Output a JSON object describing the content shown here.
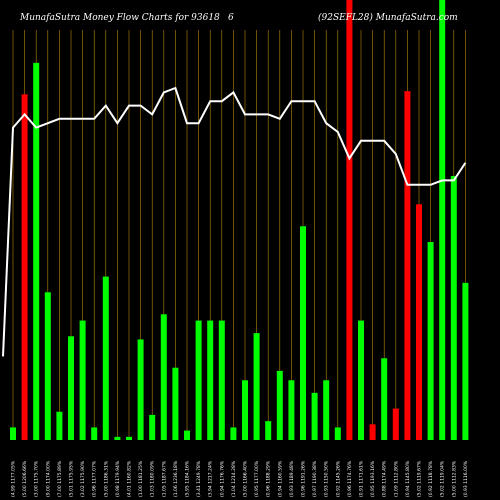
{
  "header": {
    "left": "MunafaSutra  Money Flow  Charts for 93618",
    "middle": "6",
    "right": "(92SEFL28) MunafaSutra.com"
  },
  "chart_data": {
    "type": "bar",
    "bar_colors": {
      "up": "#00ff00",
      "down": "#ff0000",
      "grid": "#b8860b",
      "line": "#ffffff"
    },
    "bars": [
      {
        "label": "(4.99 1177.05%",
        "value": 4,
        "color": "up"
      },
      {
        "label": "(5.00 1206.66%",
        "value": 110,
        "color": "down"
      },
      {
        "label": "(3.00 1175.70%",
        "value": 120,
        "color": "up"
      },
      {
        "label": "(9.00 1174.00%",
        "value": 47,
        "color": "up"
      },
      {
        "label": "(7.00 1175.89%",
        "value": 9,
        "color": "up"
      },
      {
        "label": "(5.01 1175.95%",
        "value": 33,
        "color": "up"
      },
      {
        "label": "(3.02 1175.90%",
        "value": 38,
        "color": "up"
      },
      {
        "label": "(0.96 1177.07%",
        "value": 4,
        "color": "up"
      },
      {
        "label": "(5.00 1186.31%",
        "value": 52,
        "color": "up"
      },
      {
        "label": "(0.98 1179.94%",
        "value": 1,
        "color": "up"
      },
      {
        "label": "(4.01 1160.82%",
        "value": 1,
        "color": "up"
      },
      {
        "label": "(1.00 1181.25%",
        "value": 32,
        "color": "up"
      },
      {
        "label": "(1.03 1180.09%",
        "value": 8,
        "color": "up"
      },
      {
        "label": "(1.05 1187.67%",
        "value": 40,
        "color": "up"
      },
      {
        "label": "(1.06 1236.18%",
        "value": 23,
        "color": "up"
      },
      {
        "label": "(5.95 1184.16%",
        "value": 3,
        "color": "up"
      },
      {
        "label": "(3.41 1249.78%",
        "value": 38,
        "color": "up"
      },
      {
        "label": "(3.94 1217.24%",
        "value": 38,
        "color": "up"
      },
      {
        "label": "(0.94 1176.76%",
        "value": 38,
        "color": "up"
      },
      {
        "label": "(1.04 1214.28%",
        "value": 4,
        "color": "up"
      },
      {
        "label": "(5.00 1166.40%",
        "value": 19,
        "color": "up"
      },
      {
        "label": "(0.95 1177.00%",
        "value": 34,
        "color": "up"
      },
      {
        "label": "(0.96 1188.29%",
        "value": 6,
        "color": "up"
      },
      {
        "label": "(0.94 1160.59%",
        "value": 22,
        "color": "up"
      },
      {
        "label": "(0.93 1189.48%",
        "value": 19,
        "color": "up"
      },
      {
        "label": "(0.96 1191.26%",
        "value": 68,
        "color": "up"
      },
      {
        "label": "(0.97 1190.38%",
        "value": 15,
        "color": "up"
      },
      {
        "label": "(0.93 1150.50%",
        "value": 19,
        "color": "up"
      },
      {
        "label": "(0.92 1145.26%",
        "value": 4,
        "color": "up"
      },
      {
        "label": "(0.96 1174.76%",
        "value": 140,
        "color": "down"
      },
      {
        "label": "(0.91 1171.61%",
        "value": 38,
        "color": "up"
      },
      {
        "label": "(0.95 1193.16%",
        "value": 5,
        "color": "down"
      },
      {
        "label": "(0.88 1174.49%",
        "value": 26,
        "color": "up"
      },
      {
        "label": "(1.09 1112.80%",
        "value": 10,
        "color": "down"
      },
      {
        "label": "(0.94 1145.80%",
        "value": 111,
        "color": "down"
      },
      {
        "label": "(5.02 1119.67%",
        "value": 75,
        "color": "down"
      },
      {
        "label": "(0.92 1118.78%",
        "value": 63,
        "color": "up"
      },
      {
        "label": "(5.02 1119.04%",
        "value": 140,
        "color": "up"
      },
      {
        "label": "(5.00 1112.83%",
        "value": 84,
        "color": "up"
      },
      {
        "label": "(0.93 1116.00%",
        "value": 50,
        "color": "up"
      }
    ],
    "line": [
      71,
      74,
      71,
      72,
      73,
      73,
      73,
      73,
      76,
      72,
      76,
      76,
      74,
      79,
      80,
      72,
      72,
      77,
      77,
      79,
      74,
      74,
      74,
      73,
      77,
      77,
      77,
      72,
      70,
      64,
      68,
      68,
      68,
      65,
      58,
      58,
      58,
      59,
      59,
      63
    ],
    "line_start": 19,
    "xlabel": "",
    "ylabel": ""
  }
}
